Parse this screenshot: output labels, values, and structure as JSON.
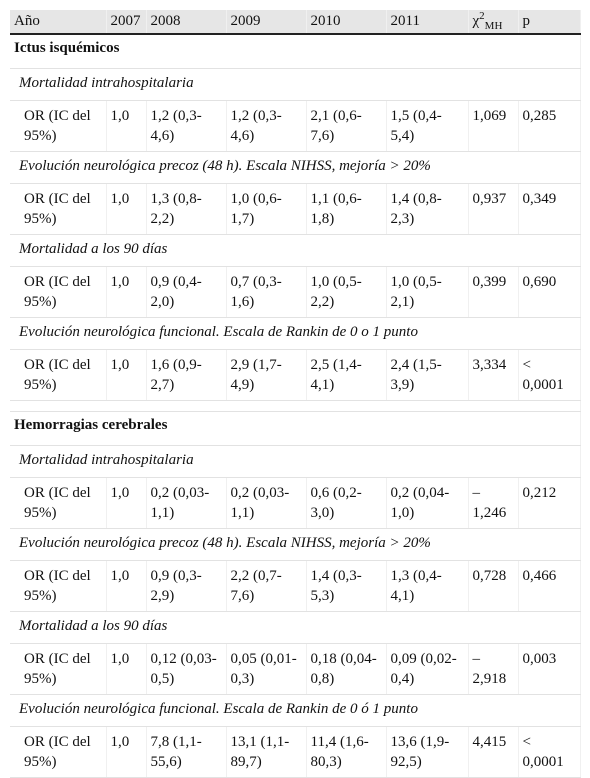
{
  "header": {
    "cells": [
      "Año",
      "2007",
      "2008",
      "2009",
      "2010",
      "2011"
    ],
    "chi": "χ",
    "chi_sup": "2",
    "chi_sub": "MH",
    "p": "p"
  },
  "sections": [
    {
      "title": "Ictus isquémicos",
      "groups": [
        {
          "label": "Mortalidad intrahospitalaria",
          "row": [
            "OR (IC del 95%)",
            "1,0",
            "1,2 (0,3-4,6)",
            "1,2 (0,3-4,6)",
            "2,1 (0,6-7,6)",
            "1,5 (0,4-5,4)",
            "1,069",
            "0,285"
          ]
        },
        {
          "label": "Evolución neurológica precoz (48 h). Escala NIHSS, mejoría > 20%",
          "row": [
            "OR (IC del 95%)",
            "1,0",
            "1,3 (0,8-2,2)",
            "1,0 (0,6-1,7)",
            "1,1 (0,6-1,8)",
            "1,4 (0,8-2,3)",
            "0,937",
            "0,349"
          ]
        },
        {
          "label": "Mortalidad a los 90 días",
          "row": [
            "OR (IC del 95%)",
            "1,0",
            "0,9 (0,4-2,0)",
            "0,7 (0,3-1,6)",
            "1,0 (0,5-2,2)",
            "1,0 (0,5-2,1)",
            "0,399",
            "0,690"
          ]
        },
        {
          "label": "Evolución neurológica funcional. Escala de Rankin de 0 o 1 punto",
          "row": [
            "OR (IC del 95%)",
            "1,0",
            "1,6 (0,9-2,7)",
            "2,9 (1,7-4,9)",
            "2,5 (1,4-4,1)",
            "2,4 (1,5-3,9)",
            "3,334",
            "< 0,0001"
          ]
        }
      ]
    },
    {
      "title": "Hemorragias cerebrales",
      "groups": [
        {
          "label": "Mortalidad intrahospitalaria",
          "row": [
            "OR (IC del 95%)",
            "1,0",
            "0,2 (0,03-1,1)",
            "0,2 (0,03-1,1)",
            "0,6 (0,2-3,0)",
            "0,2 (0,04-1,0)",
            "– 1,246",
            "0,212"
          ]
        },
        {
          "label": "Evolución neurológica precoz (48 h). Escala NIHSS, mejoría > 20%",
          "row": [
            "OR (IC del 95%)",
            "1,0",
            "0,9 (0,3-2,9)",
            "2,2 (0,7-7,6)",
            "1,4 (0,3-5,3)",
            "1,3 (0,4-4,1)",
            "0,728",
            "0,466"
          ]
        },
        {
          "label": "Mortalidad a los 90 días",
          "row": [
            "OR (IC del 95%)",
            "1,0",
            "0,12 (0,03-0,5)",
            "0,05 (0,01-0,3)",
            "0,18 (0,04-0,8)",
            "0,09 (0,02-0,4)",
            "– 2,918",
            "0,003"
          ]
        },
        {
          "label": "Evolución neurológica funcional. Escala de Rankin de 0 ó 1 punto",
          "row": [
            "OR (IC del 95%)",
            "1,0",
            "7,8 (1,1-55,6)",
            "13,1 (1,1-89,7)",
            "11,4 (1,6-80,3)",
            "13,6 (1,9-92,5)",
            "4,415",
            "< 0,0001"
          ]
        }
      ]
    }
  ]
}
